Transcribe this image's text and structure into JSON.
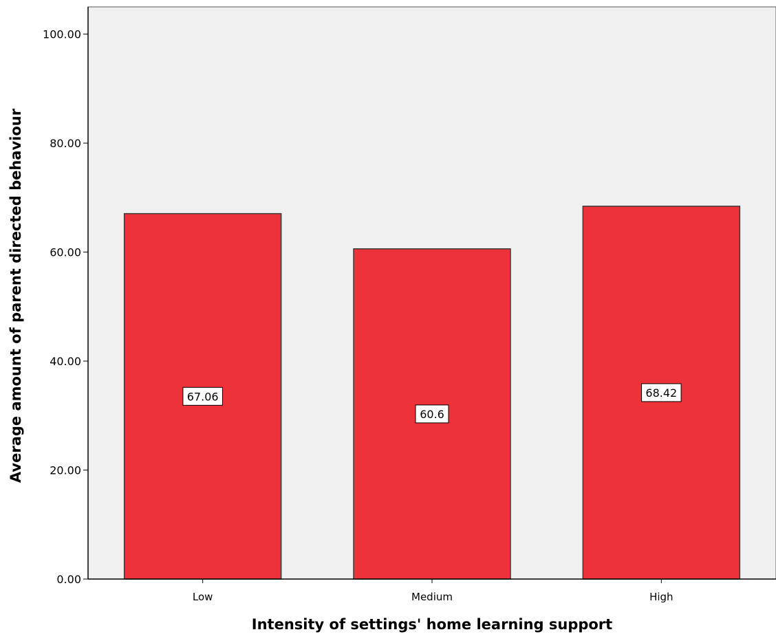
{
  "chart_data": {
    "type": "bar",
    "title": "",
    "xlabel": "Intensity of settings' home learning support",
    "ylabel": "Average amount of parent directed behaviour",
    "categories": [
      "Low",
      "Medium",
      "High"
    ],
    "values": [
      67.06,
      60.6,
      68.42
    ],
    "data_labels": [
      "67.06",
      "60.6",
      "68.42"
    ],
    "ylim": [
      0,
      105
    ],
    "y_ticks": [
      0,
      20,
      40,
      60,
      80,
      100
    ],
    "y_tick_labels": [
      "0.00",
      "20.00",
      "40.00",
      "60.00",
      "80.00",
      "100.00"
    ],
    "grid": false,
    "legend": "none",
    "colors": {
      "bar": "#ee3239",
      "plot_background": "#f0f0f0",
      "bar_outline": "#3a3a3a",
      "axis": "#000000"
    }
  }
}
